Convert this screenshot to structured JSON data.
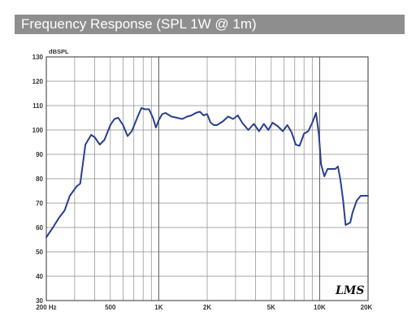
{
  "title": "Frequency Response (SPL 1W @ 1m)",
  "logo_text": "LMS",
  "chart_data": {
    "type": "line",
    "title": "Frequency Response (SPL 1W @ 1m)",
    "xlabel": "",
    "ylabel": "dBSPL",
    "x_scale": "log",
    "xlim": [
      200,
      20000
    ],
    "ylim": [
      30,
      130
    ],
    "grid": true,
    "x_tick_labels": [
      {
        "value": 200,
        "label": "200 Hz"
      },
      {
        "value": 500,
        "label": "500"
      },
      {
        "value": 1000,
        "label": "1K"
      },
      {
        "value": 2000,
        "label": "2K"
      },
      {
        "value": 5000,
        "label": "5K"
      },
      {
        "value": 10000,
        "label": "10K"
      },
      {
        "value": 20000,
        "label": "20K"
      }
    ],
    "y_ticks": [
      30,
      40,
      50,
      60,
      70,
      80,
      90,
      100,
      110,
      120,
      130
    ],
    "line_color": "#2a3f8f",
    "series": [
      {
        "x": [
          200,
          220,
          240,
          260,
          280,
          310,
          325,
          350,
          380,
          400,
          430,
          460,
          500,
          530,
          560,
          600,
          640,
          680,
          740,
          780,
          820,
          870,
          920,
          960,
          1000,
          1050,
          1100,
          1200,
          1300,
          1400,
          1500,
          1600,
          1700,
          1800,
          1900,
          2000,
          2100,
          2200,
          2300,
          2500,
          2700,
          2900,
          3100,
          3300,
          3600,
          3900,
          4200,
          4500,
          4800,
          5100,
          5500,
          5900,
          6300,
          6700,
          7100,
          7500,
          8000,
          8500,
          9000,
          9500,
          9900,
          10200,
          10700,
          11200,
          11800,
          12500,
          13000,
          13500,
          14000,
          14500,
          15000,
          15500,
          16000,
          17000,
          18000,
          19000,
          20000
        ],
        "y": [
          56,
          60,
          64,
          67,
          73,
          77,
          78,
          94,
          98,
          97,
          94,
          96,
          102,
          104.5,
          105,
          102,
          97.5,
          99.5,
          105.5,
          109,
          108.5,
          108.5,
          105,
          101,
          104,
          106.5,
          107,
          105.5,
          105,
          104.5,
          105.5,
          106,
          107,
          107.5,
          106,
          106.5,
          103,
          102,
          102,
          103.5,
          105.5,
          104.5,
          106,
          103,
          100,
          102.5,
          99.5,
          102.5,
          100,
          103,
          101.5,
          99.5,
          102,
          99,
          94,
          93.5,
          98.5,
          99.5,
          103,
          107,
          98,
          86,
          81,
          84,
          84,
          84,
          85,
          79,
          71,
          61,
          61.5,
          62,
          66,
          71,
          73,
          73,
          73
        ]
      }
    ]
  }
}
